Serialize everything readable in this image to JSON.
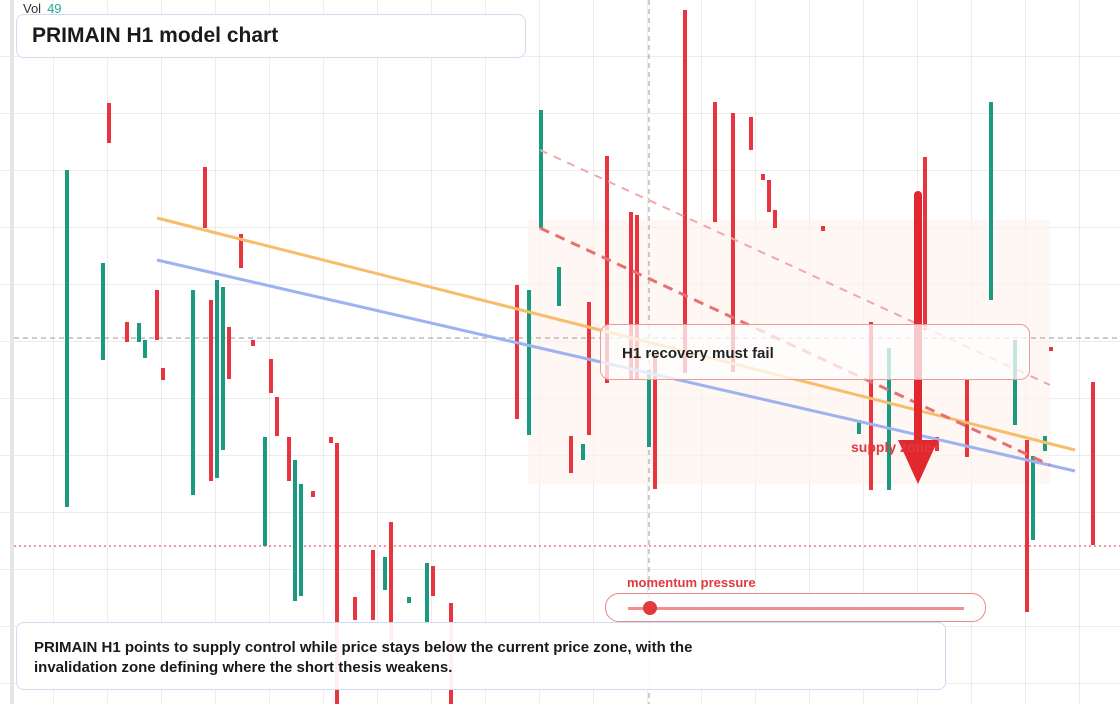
{
  "chart_data": {
    "type": "candlestick",
    "title": "PRIMAIN H1 model chart",
    "volume_label": "Vol",
    "volume_value": 49,
    "callout": "H1 recovery must fail",
    "zone_label": "supply zone",
    "indicator_label": "momentum pressure",
    "description": "PRIMAIN H1 points to supply control while price stays below the current price zone, with the invalidation zone defining where the short thesis weakens.",
    "up_color": "#1a9a80",
    "down_color": "#e8343f",
    "xlim": [
      0,
      186
    ],
    "ylim": [
      0,
      70.4
    ],
    "x": [
      11,
      17,
      18,
      21,
      23,
      24,
      26,
      27,
      32,
      34,
      35,
      36,
      37,
      38,
      40,
      42,
      44,
      45,
      46,
      48,
      49,
      50,
      52,
      55,
      56,
      59,
      62,
      64,
      65,
      68,
      71,
      72,
      75,
      86,
      88,
      90,
      93,
      95,
      97,
      98,
      101,
      105,
      106,
      108,
      109,
      114,
      119,
      122,
      125,
      127,
      128,
      129,
      137,
      143,
      145,
      148,
      154,
      156,
      161,
      165,
      169,
      171,
      172,
      174,
      175,
      182
    ],
    "open": [
      19.7,
      34.4,
      60.1,
      38.2,
      36.2,
      34.6,
      41.4,
      33.6,
      20.9,
      53.7,
      40.4,
      22.6,
      25.4,
      37.7,
      47.0,
      36.4,
      15.8,
      34.5,
      30.7,
      26.7,
      10.3,
      10.8,
      21.3,
      26.7,
      26.1,
      10.7,
      15.4,
      11.4,
      18.2,
      10.1,
      8.2,
      13.8,
      10.1,
      41.9,
      26.9,
      47.6,
      39.8,
      26.8,
      24.4,
      40.2,
      54.8,
      49.2,
      48.9,
      25.7,
      34.9,
      69.4,
      60.2,
      59.1,
      58.7,
      53.0,
      52.4,
      49.4,
      47.8,
      27.0,
      38.2,
      21.4,
      54.7,
      26.7,
      32.4,
      40.4,
      27.9,
      26.4,
      16.4,
      25.3,
      35.7,
      32.2
    ],
    "close": [
      53.4,
      44.1,
      56.1,
      36.2,
      38.1,
      36.4,
      36.4,
      32.4,
      41.4,
      47.6,
      22.3,
      42.4,
      41.7,
      32.5,
      43.6,
      35.8,
      26.7,
      31.1,
      26.8,
      22.3,
      24.4,
      22.0,
      20.7,
      26.1,
      0,
      8.4,
      8.4,
      14.7,
      6.4,
      10.7,
      14.1,
      10.8,
      0,
      28.5,
      41.4,
      59.4,
      43.7,
      23.1,
      26.0,
      26.9,
      32.1,
      32.4,
      32.4,
      33.4,
      21.5,
      33.1,
      48.2,
      33.2,
      55.4,
      52.4,
      49.2,
      47.6,
      47.3,
      28.4,
      21.4,
      35.6,
      37.4,
      25.3,
      24.7,
      60.2,
      36.4,
      9.2,
      24.8,
      26.8,
      35.3,
      15.9
    ]
  }
}
